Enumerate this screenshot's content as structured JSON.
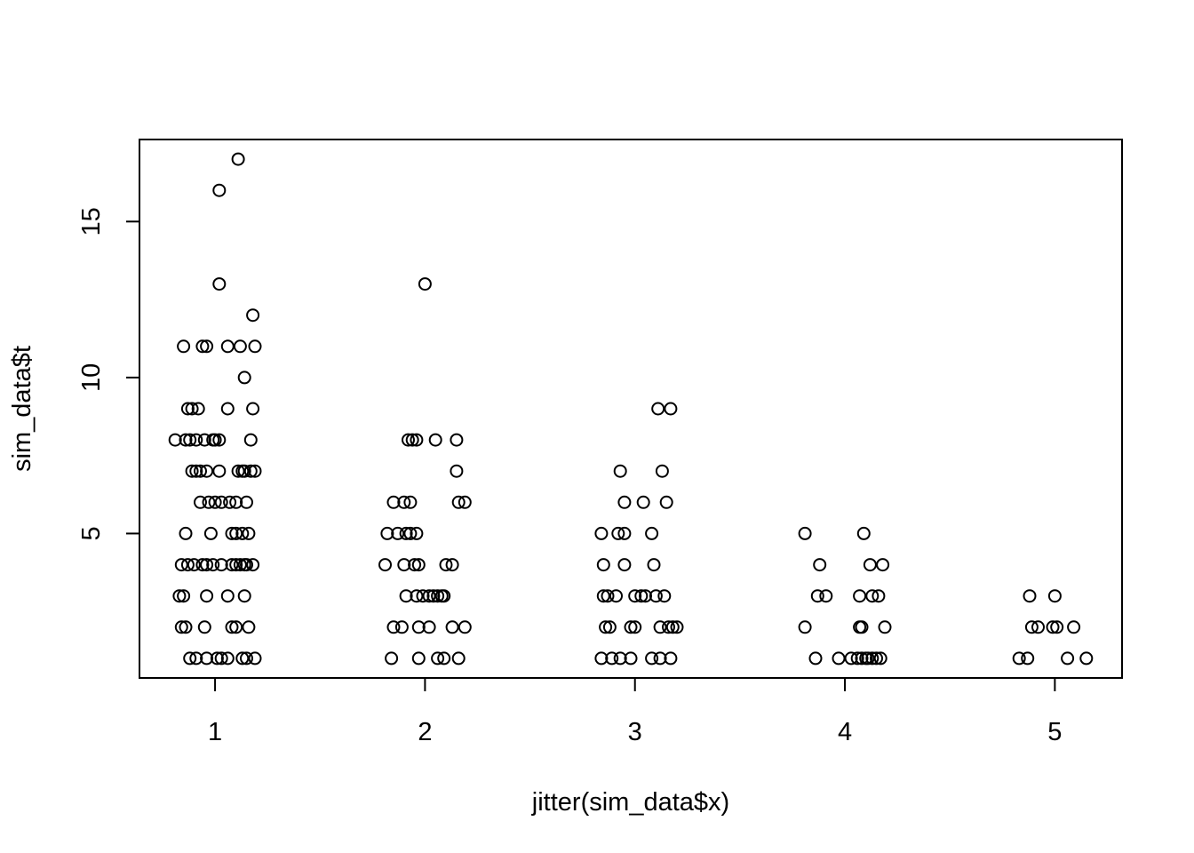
{
  "chart_data": {
    "type": "scatter",
    "title": "",
    "xlabel": "jitter(sim_data$x)",
    "ylabel": "sim_data$t",
    "xlim": [
      0.64,
      5.32
    ],
    "ylim": [
      0.37,
      17.63
    ],
    "x_ticks": [
      1,
      2,
      3,
      4,
      5
    ],
    "y_ticks": [
      5,
      10,
      15
    ],
    "grid": false,
    "legend": "none",
    "marker": "open-circle",
    "point_color": "#000000",
    "points": [
      [
        1.11,
        17
      ],
      [
        1.02,
        16
      ],
      [
        1.02,
        13
      ],
      [
        1.18,
        12
      ],
      [
        0.85,
        11
      ],
      [
        0.94,
        11
      ],
      [
        0.96,
        11
      ],
      [
        1.06,
        11
      ],
      [
        1.12,
        11
      ],
      [
        1.19,
        11
      ],
      [
        1.14,
        10
      ],
      [
        0.87,
        9
      ],
      [
        0.89,
        9
      ],
      [
        0.92,
        9
      ],
      [
        1.06,
        9
      ],
      [
        1.18,
        9
      ],
      [
        0.81,
        8
      ],
      [
        0.86,
        8
      ],
      [
        0.88,
        8
      ],
      [
        0.91,
        8
      ],
      [
        0.95,
        8
      ],
      [
        0.99,
        8
      ],
      [
        1.0,
        8
      ],
      [
        1.02,
        8
      ],
      [
        1.17,
        8
      ],
      [
        0.89,
        7
      ],
      [
        0.91,
        7
      ],
      [
        0.93,
        7
      ],
      [
        0.96,
        7
      ],
      [
        1.02,
        7
      ],
      [
        1.11,
        7
      ],
      [
        1.13,
        7
      ],
      [
        1.14,
        7
      ],
      [
        1.17,
        7
      ],
      [
        1.19,
        7
      ],
      [
        0.93,
        6
      ],
      [
        0.97,
        6
      ],
      [
        1.0,
        6
      ],
      [
        1.03,
        6
      ],
      [
        1.07,
        6
      ],
      [
        1.1,
        6
      ],
      [
        1.15,
        6
      ],
      [
        0.86,
        5
      ],
      [
        0.98,
        5
      ],
      [
        1.08,
        5
      ],
      [
        1.1,
        5
      ],
      [
        1.13,
        5
      ],
      [
        1.16,
        5
      ],
      [
        0.84,
        4
      ],
      [
        0.87,
        4
      ],
      [
        0.9,
        4
      ],
      [
        0.94,
        4
      ],
      [
        0.96,
        4
      ],
      [
        0.99,
        4
      ],
      [
        1.03,
        4
      ],
      [
        1.08,
        4
      ],
      [
        1.1,
        4
      ],
      [
        1.12,
        4
      ],
      [
        1.14,
        4
      ],
      [
        1.15,
        4
      ],
      [
        1.18,
        4
      ],
      [
        0.83,
        3
      ],
      [
        0.85,
        3
      ],
      [
        0.96,
        3
      ],
      [
        1.06,
        3
      ],
      [
        1.14,
        3
      ],
      [
        0.84,
        2
      ],
      [
        0.86,
        2
      ],
      [
        0.95,
        2
      ],
      [
        1.08,
        2
      ],
      [
        1.1,
        2
      ],
      [
        1.16,
        2
      ],
      [
        0.88,
        1
      ],
      [
        0.91,
        1
      ],
      [
        0.96,
        1
      ],
      [
        1.01,
        1
      ],
      [
        1.03,
        1
      ],
      [
        1.06,
        1
      ],
      [
        1.13,
        1
      ],
      [
        1.15,
        1
      ],
      [
        1.19,
        1
      ],
      [
        2.0,
        13
      ],
      [
        1.92,
        8
      ],
      [
        1.94,
        8
      ],
      [
        1.96,
        8
      ],
      [
        2.05,
        8
      ],
      [
        2.15,
        8
      ],
      [
        2.15,
        7
      ],
      [
        1.85,
        6
      ],
      [
        1.9,
        6
      ],
      [
        1.93,
        6
      ],
      [
        2.16,
        6
      ],
      [
        2.19,
        6
      ],
      [
        1.82,
        5
      ],
      [
        1.87,
        5
      ],
      [
        1.91,
        5
      ],
      [
        1.93,
        5
      ],
      [
        1.96,
        5
      ],
      [
        1.81,
        4
      ],
      [
        1.9,
        4
      ],
      [
        1.95,
        4
      ],
      [
        1.97,
        4
      ],
      [
        2.1,
        4
      ],
      [
        2.13,
        4
      ],
      [
        1.91,
        3
      ],
      [
        1.96,
        3
      ],
      [
        1.99,
        3
      ],
      [
        2.02,
        3
      ],
      [
        2.04,
        3
      ],
      [
        2.06,
        3
      ],
      [
        2.08,
        3
      ],
      [
        2.09,
        3
      ],
      [
        1.85,
        2
      ],
      [
        1.89,
        2
      ],
      [
        1.97,
        2
      ],
      [
        2.02,
        2
      ],
      [
        2.13,
        2
      ],
      [
        2.19,
        2
      ],
      [
        1.84,
        1
      ],
      [
        1.97,
        1
      ],
      [
        2.06,
        1
      ],
      [
        2.09,
        1
      ],
      [
        2.16,
        1
      ],
      [
        3.11,
        9
      ],
      [
        3.17,
        9
      ],
      [
        2.93,
        7
      ],
      [
        3.13,
        7
      ],
      [
        2.95,
        6
      ],
      [
        3.04,
        6
      ],
      [
        3.15,
        6
      ],
      [
        2.84,
        5
      ],
      [
        2.92,
        5
      ],
      [
        2.95,
        5
      ],
      [
        3.08,
        5
      ],
      [
        2.85,
        4
      ],
      [
        2.95,
        4
      ],
      [
        3.09,
        4
      ],
      [
        2.85,
        3
      ],
      [
        2.87,
        3
      ],
      [
        2.91,
        3
      ],
      [
        3.0,
        3
      ],
      [
        3.03,
        3
      ],
      [
        3.05,
        3
      ],
      [
        3.1,
        3
      ],
      [
        3.14,
        3
      ],
      [
        2.86,
        2
      ],
      [
        2.88,
        2
      ],
      [
        2.98,
        2
      ],
      [
        3.0,
        2
      ],
      [
        3.12,
        2
      ],
      [
        3.16,
        2
      ],
      [
        3.18,
        2
      ],
      [
        3.2,
        2
      ],
      [
        2.84,
        1
      ],
      [
        2.89,
        1
      ],
      [
        2.93,
        1
      ],
      [
        2.98,
        1
      ],
      [
        3.08,
        1
      ],
      [
        3.12,
        1
      ],
      [
        3.17,
        1
      ],
      [
        3.81,
        5
      ],
      [
        4.09,
        5
      ],
      [
        3.88,
        4
      ],
      [
        4.12,
        4
      ],
      [
        4.18,
        4
      ],
      [
        3.87,
        3
      ],
      [
        3.91,
        3
      ],
      [
        4.07,
        3
      ],
      [
        4.13,
        3
      ],
      [
        4.16,
        3
      ],
      [
        3.81,
        2
      ],
      [
        4.07,
        2
      ],
      [
        4.08,
        2
      ],
      [
        4.19,
        2
      ],
      [
        3.86,
        1
      ],
      [
        3.97,
        1
      ],
      [
        4.03,
        1
      ],
      [
        4.06,
        1
      ],
      [
        4.08,
        1
      ],
      [
        4.1,
        1
      ],
      [
        4.11,
        1
      ],
      [
        4.13,
        1
      ],
      [
        4.15,
        1
      ],
      [
        4.17,
        1
      ],
      [
        4.88,
        3
      ],
      [
        5.0,
        3
      ],
      [
        4.89,
        2
      ],
      [
        4.92,
        2
      ],
      [
        4.99,
        2
      ],
      [
        5.01,
        2
      ],
      [
        5.09,
        2
      ],
      [
        4.83,
        1
      ],
      [
        4.87,
        1
      ],
      [
        5.06,
        1
      ],
      [
        5.15,
        1
      ]
    ]
  }
}
